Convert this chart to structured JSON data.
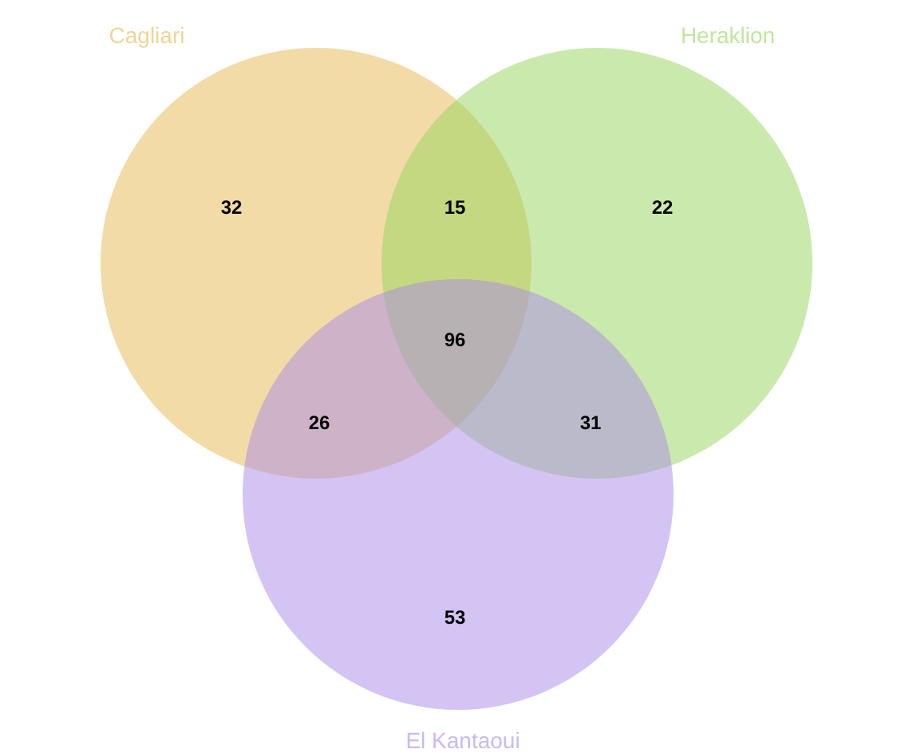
{
  "chart_data": {
    "type": "other",
    "categories": [
      null,
      null,
      null,
      null,
      null,
      null,
      null
    ],
    "values": [
      32,
      15,
      22,
      96,
      26,
      31,
      53
    ],
    "data_labels": true,
    "annotations": [
      "Cagliari",
      "Heraklion",
      "El Kantaoui"
    ]
  }
}
